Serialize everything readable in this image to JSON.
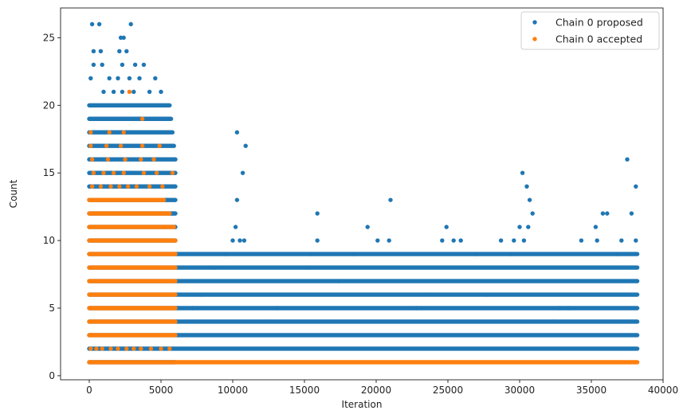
{
  "chart_data": {
    "type": "scatter",
    "xlabel": "Iteration",
    "ylabel": "Count",
    "xlim": [
      -2000,
      40000
    ],
    "ylim": [
      -0.3,
      27.2
    ],
    "xticks": [
      0,
      5000,
      10000,
      15000,
      20000,
      25000,
      30000,
      35000,
      40000
    ],
    "yticks": [
      0,
      5,
      10,
      15,
      20,
      25
    ],
    "grid": false,
    "legend_position": "top-right",
    "series": [
      {
        "name": "Chain 0 proposed",
        "color": "#1f77b4",
        "marker": "circle",
        "bands": [
          {
            "y": 1,
            "x": [
              0,
              6000
            ]
          },
          {
            "y": 2,
            "x": [
              0,
              38200
            ]
          },
          {
            "y": 3,
            "x": [
              0,
              38200
            ]
          },
          {
            "y": 4,
            "x": [
              0,
              38200
            ]
          },
          {
            "y": 5,
            "x": [
              0,
              38200
            ]
          },
          {
            "y": 6,
            "x": [
              0,
              38200
            ]
          },
          {
            "y": 7,
            "x": [
              0,
              38200
            ]
          },
          {
            "y": 8,
            "x": [
              0,
              38200
            ]
          },
          {
            "y": 9,
            "x": [
              0,
              38200
            ]
          },
          {
            "y": 10,
            "x": [
              0,
              6000
            ]
          },
          {
            "y": 11,
            "x": [
              0,
              6000
            ]
          },
          {
            "y": 12,
            "x": [
              0,
              6000
            ]
          },
          {
            "y": 13,
            "x": [
              0,
              6000
            ]
          },
          {
            "y": 14,
            "x": [
              0,
              6000
            ]
          },
          {
            "y": 15,
            "x": [
              0,
              6000
            ]
          },
          {
            "y": 16,
            "x": [
              0,
              6000
            ]
          },
          {
            "y": 17,
            "x": [
              0,
              5900
            ]
          },
          {
            "y": 18,
            "x": [
              0,
              5800
            ]
          },
          {
            "y": 19,
            "x": [
              0,
              5700
            ]
          },
          {
            "y": 20,
            "x": [
              0,
              5600
            ]
          }
        ],
        "points": [
          [
            200,
            26
          ],
          [
            700,
            26
          ],
          [
            2900,
            26
          ],
          [
            2200,
            25
          ],
          [
            2400,
            25
          ],
          [
            300,
            24
          ],
          [
            800,
            24
          ],
          [
            2100,
            24
          ],
          [
            2600,
            24
          ],
          [
            300,
            23
          ],
          [
            900,
            23
          ],
          [
            2300,
            23
          ],
          [
            3200,
            23
          ],
          [
            3800,
            23
          ],
          [
            100,
            22
          ],
          [
            1400,
            22
          ],
          [
            2000,
            22
          ],
          [
            2800,
            22
          ],
          [
            3500,
            22
          ],
          [
            4600,
            22
          ],
          [
            1000,
            21
          ],
          [
            1700,
            21
          ],
          [
            2300,
            21
          ],
          [
            3100,
            21
          ],
          [
            4200,
            21
          ],
          [
            5000,
            21
          ],
          [
            10300,
            18
          ],
          [
            10900,
            17
          ],
          [
            10700,
            15
          ],
          [
            10300,
            13
          ],
          [
            15900,
            12
          ],
          [
            10200,
            11
          ],
          [
            10000,
            10
          ],
          [
            10500,
            10
          ],
          [
            10800,
            10
          ],
          [
            15900,
            10
          ],
          [
            15500,
            9
          ],
          [
            15200,
            8
          ],
          [
            18400,
            9
          ],
          [
            19400,
            11
          ],
          [
            20100,
            10
          ],
          [
            20900,
            10
          ],
          [
            21000,
            13
          ],
          [
            24900,
            11
          ],
          [
            24600,
            10
          ],
          [
            25400,
            10
          ],
          [
            25900,
            10
          ],
          [
            27000,
            9
          ],
          [
            28700,
            10
          ],
          [
            29400,
            9
          ],
          [
            30200,
            15
          ],
          [
            30500,
            14
          ],
          [
            30700,
            13
          ],
          [
            30900,
            12
          ],
          [
            30000,
            11
          ],
          [
            30600,
            11
          ],
          [
            29600,
            10
          ],
          [
            30300,
            10
          ],
          [
            34300,
            10
          ],
          [
            35300,
            11
          ],
          [
            35400,
            10
          ],
          [
            35800,
            12
          ],
          [
            36100,
            12
          ],
          [
            37100,
            10
          ],
          [
            37500,
            16
          ],
          [
            37800,
            12
          ],
          [
            38100,
            14
          ],
          [
            38100,
            10
          ],
          [
            36800,
            9
          ],
          [
            13100,
            5
          ],
          [
            12200,
            4
          ],
          [
            17400,
            7
          ],
          [
            22800,
            5
          ],
          [
            23500,
            6
          ],
          [
            27700,
            6
          ],
          [
            32300,
            4
          ],
          [
            32800,
            5
          ],
          [
            33400,
            5
          ],
          [
            8700,
            8
          ],
          [
            9500,
            9
          ],
          [
            7200,
            5
          ],
          [
            7800,
            6
          ]
        ]
      },
      {
        "name": "Chain 0 accepted",
        "color": "#ff7f0e",
        "marker": "circle",
        "bands": [
          {
            "y": 1,
            "x": [
              0,
              38200
            ]
          },
          {
            "y": 3,
            "x": [
              0,
              6000
            ]
          },
          {
            "y": 4,
            "x": [
              0,
              6000
            ]
          },
          {
            "y": 5,
            "x": [
              0,
              6000
            ]
          },
          {
            "y": 6,
            "x": [
              0,
              6000
            ]
          },
          {
            "y": 7,
            "x": [
              0,
              6000
            ]
          },
          {
            "y": 8,
            "x": [
              0,
              6000
            ]
          },
          {
            "y": 9,
            "x": [
              0,
              6000
            ]
          },
          {
            "y": 10,
            "x": [
              0,
              6000
            ]
          },
          {
            "y": 11,
            "x": [
              0,
              5900
            ]
          },
          {
            "y": 12,
            "x": [
              0,
              5600
            ]
          },
          {
            "y": 13,
            "x": [
              0,
              5200
            ]
          }
        ],
        "points": [
          [
            100,
            2
          ],
          [
            500,
            2
          ],
          [
            900,
            2
          ],
          [
            1500,
            2
          ],
          [
            2000,
            2
          ],
          [
            2600,
            2
          ],
          [
            3100,
            2
          ],
          [
            3600,
            2
          ],
          [
            4300,
            2
          ],
          [
            5000,
            2
          ],
          [
            5600,
            2
          ],
          [
            200,
            14
          ],
          [
            800,
            14
          ],
          [
            1500,
            14
          ],
          [
            2100,
            14
          ],
          [
            2700,
            14
          ],
          [
            3300,
            14
          ],
          [
            4200,
            14
          ],
          [
            5100,
            14
          ],
          [
            300,
            15
          ],
          [
            1000,
            15
          ],
          [
            1700,
            15
          ],
          [
            2400,
            15
          ],
          [
            3800,
            15
          ],
          [
            4700,
            15
          ],
          [
            5800,
            15
          ],
          [
            200,
            16
          ],
          [
            1300,
            16
          ],
          [
            2500,
            16
          ],
          [
            3600,
            16
          ],
          [
            4500,
            16
          ],
          [
            100,
            17
          ],
          [
            1200,
            17
          ],
          [
            2200,
            17
          ],
          [
            3700,
            17
          ],
          [
            4900,
            17
          ],
          [
            100,
            18
          ],
          [
            1400,
            18
          ],
          [
            2400,
            18
          ],
          [
            3700,
            19
          ],
          [
            2800,
            21
          ]
        ]
      }
    ]
  }
}
